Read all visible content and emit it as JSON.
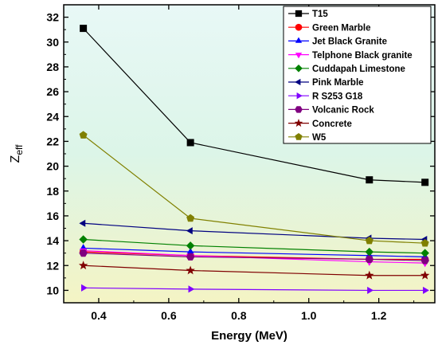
{
  "chart_data": {
    "type": "line",
    "xlabel": "Energy (MeV)",
    "ylabel_base": "Z",
    "ylabel_sub": "eff",
    "xlim": [
      0.3,
      1.36
    ],
    "ylim": [
      9,
      33
    ],
    "xticks": [
      0.4,
      0.6,
      0.8,
      1.0,
      1.2
    ],
    "xtick_labels": [
      "0.4",
      "0.6",
      "0.8",
      "1.0",
      "1.2"
    ],
    "yticks": [
      10,
      12,
      14,
      16,
      18,
      20,
      22,
      24,
      26,
      28,
      30,
      32
    ],
    "ytick_labels": [
      "10",
      "12",
      "14",
      "16",
      "18",
      "20",
      "22",
      "24",
      "26",
      "28",
      "30",
      "32"
    ],
    "grid": false,
    "legend_position": "top-right",
    "background": "yellow-to-cyan gradient",
    "x": [
      0.356,
      0.662,
      1.173,
      1.332
    ],
    "series": [
      {
        "name": "T15",
        "values": [
          31.1,
          21.9,
          18.9,
          18.7
        ],
        "color": "#000000",
        "marker": "square"
      },
      {
        "name": "Green Marble",
        "values": [
          13.1,
          12.8,
          12.5,
          12.5
        ],
        "color": "#ff0000",
        "marker": "circle"
      },
      {
        "name": "Jet Black Granite",
        "values": [
          13.4,
          13.1,
          12.8,
          12.7
        ],
        "color": "#0000ff",
        "marker": "triangle-up"
      },
      {
        "name": "Telphone Black granite",
        "values": [
          13.2,
          12.8,
          12.3,
          12.2
        ],
        "color": "#ff00ff",
        "marker": "triangle-down"
      },
      {
        "name": "Cuddapah Limestone",
        "values": [
          14.1,
          13.6,
          13.1,
          13.0
        ],
        "color": "#008000",
        "marker": "diamond"
      },
      {
        "name": "Pink Marble",
        "values": [
          15.4,
          14.8,
          14.2,
          14.1
        ],
        "color": "#000080",
        "marker": "triangle-left"
      },
      {
        "name": "R S253 G18",
        "values": [
          10.2,
          10.1,
          10.0,
          10.0
        ],
        "color": "#8000ff",
        "marker": "triangle-right"
      },
      {
        "name": "Volcanic Rock",
        "values": [
          13.0,
          12.7,
          12.5,
          12.4
        ],
        "color": "#800080",
        "marker": "hexagon"
      },
      {
        "name": "Concrete",
        "values": [
          12.0,
          11.6,
          11.2,
          11.2
        ],
        "color": "#800000",
        "marker": "star"
      },
      {
        "name": "W5",
        "values": [
          22.5,
          15.8,
          14.0,
          13.8
        ],
        "color": "#808000",
        "marker": "pentagon"
      }
    ]
  }
}
